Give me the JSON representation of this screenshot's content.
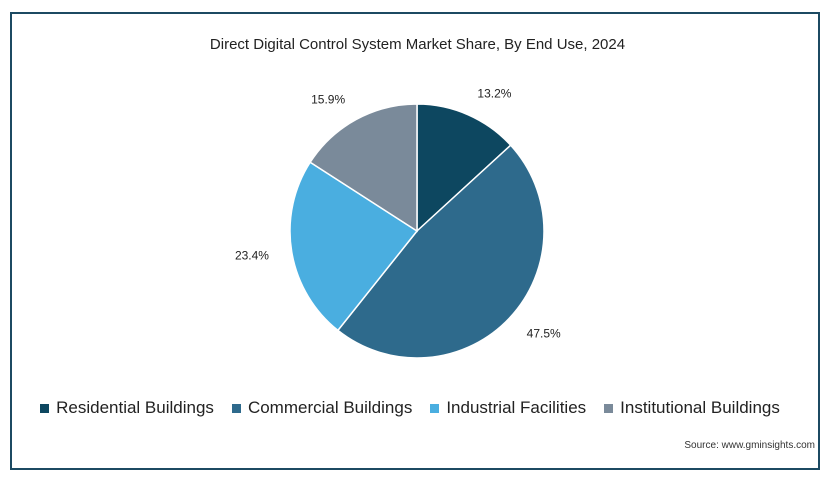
{
  "chart_data": {
    "type": "pie",
    "title": "Direct Digital Control System Market Share, By End Use, 2024",
    "categories": [
      "Residential Buildings",
      "Commercial Buildings",
      "Industrial Facilities",
      "Institutional Buildings"
    ],
    "values": [
      13.2,
      47.5,
      23.4,
      15.9
    ],
    "value_labels": [
      "13.2%",
      "47.5%",
      "23.4%",
      "15.9%"
    ],
    "colors": [
      "#0d4760",
      "#2e6a8c",
      "#4aaee0",
      "#7a8a9a"
    ],
    "legend_position": "bottom"
  },
  "source": "Source: www.gminsights.com"
}
